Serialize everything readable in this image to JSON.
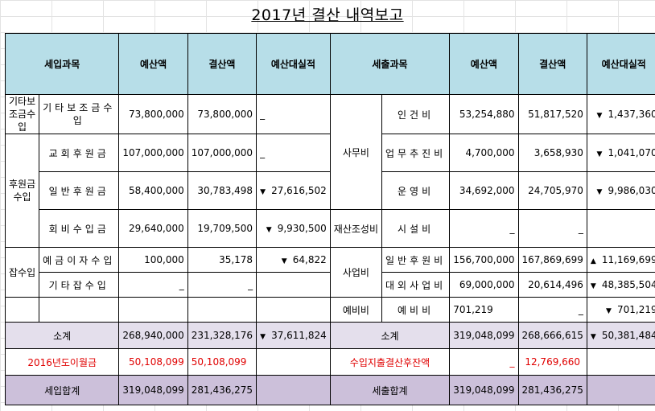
{
  "title": "2017년 결산 내역보고",
  "headers": {
    "income_item": "세입과목",
    "budget": "예산액",
    "settlement": "결산액",
    "variance": "예산대실적",
    "expense_item": "세출과목"
  },
  "income": {
    "grp_subsidy": "기타보조금수입",
    "subsidy_item": "기타보조금수입",
    "subsidy_budget": "73,800,000",
    "subsidy_settle": "73,800,000",
    "subsidy_var": "_",
    "grp_donation": "후원금수입",
    "church_item": "교회후원금",
    "church_budget": "107,000,000",
    "church_settle": "107,000,000",
    "church_var": "_",
    "general_item": "일반후원금",
    "general_budget": "58,400,000",
    "general_settle": "30,783,498",
    "general_var": "27,616,502",
    "fee_item": "회비수입금",
    "fee_budget": "29,640,000",
    "fee_settle": "19,709,500",
    "fee_var": "9,930,500",
    "grp_misc": "잡수입",
    "interest_item": "예금이자수입",
    "interest_budget": "100,000",
    "interest_settle": "35,178",
    "interest_var": "64,822",
    "other_item": "기타잡수입",
    "other_budget": "_",
    "other_settle": "_"
  },
  "expense": {
    "grp_office": "사무비",
    "personnel_item": "인건비",
    "personnel_budget": "53,254,880",
    "personnel_settle": "51,817,520",
    "personnel_var": "1,437,360",
    "business_item": "업무추진비",
    "business_budget": "4,700,000",
    "business_settle": "3,658,930",
    "business_var": "1,041,070",
    "operation_item": "운영비",
    "operation_budget": "34,692,000",
    "operation_settle": "24,705,970",
    "operation_var": "9,986,030",
    "grp_asset": "재산조성비",
    "facility_item": "시설비",
    "facility_budget": "_",
    "facility_settle": "_",
    "grp_project": "사업비",
    "gensupport_item": "일반후원비",
    "gensupport_budget": "156,700,000",
    "gensupport_settle": "167,869,699",
    "gensupport_var": "11,169,699",
    "external_item": "대외사업비",
    "external_budget": "69,000,000",
    "external_settle": "20,614,496",
    "external_var": "48,385,504",
    "grp_reserve": "예비비",
    "reserve_item": "예비비",
    "reserve_budget": "701,219",
    "reserve_settle": "_",
    "reserve_var": "701,219"
  },
  "subtotal": {
    "label": "소계",
    "income_budget": "268,940,000",
    "income_settle": "231,328,176",
    "income_var": "37,611,824",
    "expense_budget": "319,048,099",
    "expense_settle": "268,666,615",
    "expense_var": "50,381,484"
  },
  "carry": {
    "income_label": "2016년도이월금",
    "income_budget": "50,108,099",
    "income_settle": "50,108,099",
    "expense_label": "수입지출결산후잔액",
    "expense_budget": "_",
    "expense_settle": "12,769,660"
  },
  "total": {
    "income_label": "세입합계",
    "income_budget": "319,048,099",
    "income_settle": "281,436,275",
    "expense_label": "세출합계",
    "expense_budget": "319,048,099",
    "expense_settle": "281,436,275"
  },
  "markers": {
    "down": "▼",
    "up": "▲"
  },
  "colors": {
    "header_bg": "#b7dee8",
    "subtotal_bg": "#e4dfec",
    "total_bg": "#ccc0da",
    "red_text": "#e00000"
  }
}
